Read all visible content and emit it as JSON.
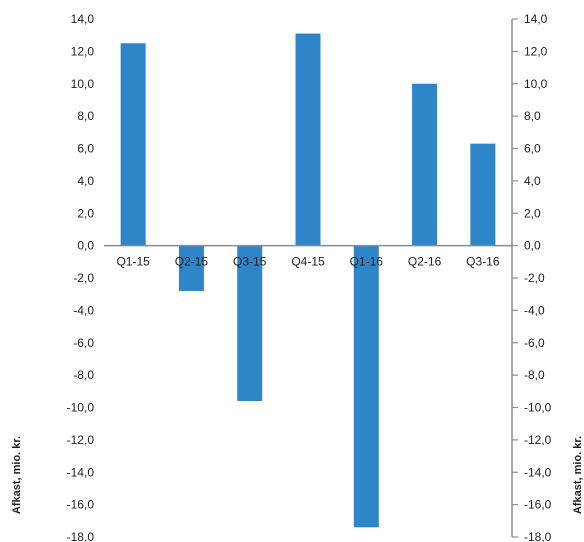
{
  "chart_data": {
    "type": "bar",
    "categories": [
      "Q1-15",
      "Q2-15",
      "Q3-15",
      "Q4-15",
      "Q1-16",
      "Q2-16",
      "Q3-16"
    ],
    "values": [
      12.5,
      -2.8,
      -9.6,
      13.1,
      -17.4,
      10.0,
      6.3
    ],
    "ylabel": "Afkast, mio. kr.",
    "y2label": "Afkast, mio. kr.",
    "ylim": [
      -18.0,
      14.0
    ],
    "y_ticks": [
      "14,0",
      "12,0",
      "10,0",
      "8,0",
      "6,0",
      "4,0",
      "2,0",
      "0,0",
      "-2,0",
      "-4,0",
      "-6,0",
      "-8,0",
      "-10,0",
      "-12,0",
      "-14,0",
      "-16,0",
      "-18,0"
    ],
    "y2_ticks": [
      "14,0",
      "12,0",
      "10,0",
      "8,0",
      "6,0",
      "4,0",
      "2,0",
      "0,0",
      "-2,0",
      "-4,0",
      "-6,0",
      "-8,0",
      "-10,0",
      "-12,0",
      "-14,0",
      "-16,0",
      "-18,0"
    ],
    "bar_color": "#2e86c9",
    "axis_color": "#8c8c8c",
    "grid": false,
    "legend": "none"
  }
}
